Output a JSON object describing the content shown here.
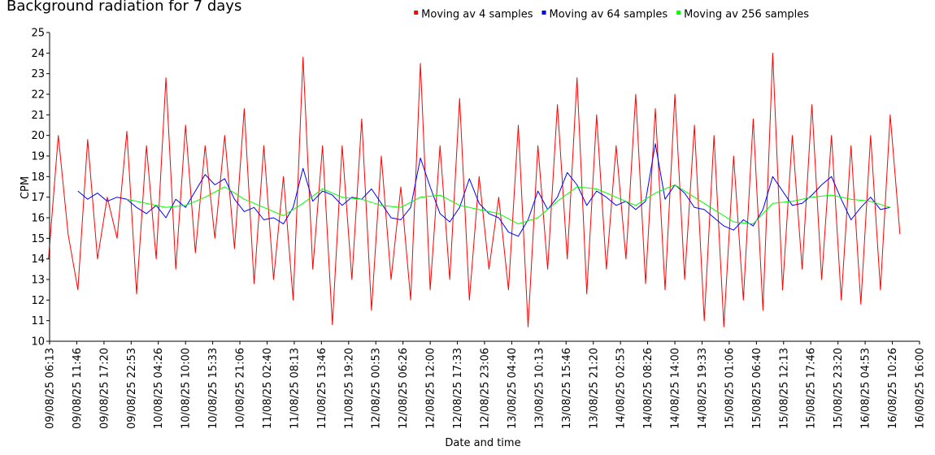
{
  "chart_data": {
    "type": "line",
    "title": "Background radiation for 7 days",
    "xlabel": "Date and time",
    "ylabel": "CPM",
    "ylim": [
      10,
      25
    ],
    "yticks": [
      10,
      11,
      12,
      13,
      14,
      15,
      16,
      17,
      18,
      19,
      20,
      21,
      22,
      23,
      24,
      25
    ],
    "xlim": [
      "09/08/25 06:13",
      "16/08/25 16:00"
    ],
    "xticks": [
      "09/08/25 06:13",
      "09/08/25 11:46",
      "09/08/25 17:20",
      "09/08/25 22:53",
      "10/08/25 04:26",
      "10/08/25 10:00",
      "10/08/25 15:33",
      "10/08/25 21:06",
      "11/08/25 02:40",
      "11/08/25 08:13",
      "11/08/25 13:46",
      "11/08/25 19:20",
      "12/08/25 00:53",
      "12/08/25 06:26",
      "12/08/25 12:00",
      "12/08/25 17:33",
      "12/08/25 23:06",
      "13/08/25 04:40",
      "13/08/25 10:13",
      "13/08/25 15:46",
      "13/08/25 21:20",
      "14/08/25 02:53",
      "14/08/25 08:26",
      "14/08/25 14:00",
      "14/08/25 19:33",
      "15/08/25 01:06",
      "15/08/25 06:40",
      "15/08/25 12:13",
      "15/08/25 17:46",
      "15/08/25 23:20",
      "16/08/25 04:53",
      "16/08/25 10:26",
      "16/08/25 16:00"
    ],
    "grid": false,
    "legend_position": "top-right",
    "series": [
      {
        "name": "Moving av 4 samples",
        "color": "#ff0000",
        "x": [
          "09/08/25 06:00",
          "09/08/25 08:00",
          "09/08/25 10:00",
          "09/08/25 12:00",
          "09/08/25 14:00",
          "09/08/25 16:00",
          "09/08/25 18:00",
          "09/08/25 20:00",
          "09/08/25 22:00",
          "10/08/25 00:00",
          "10/08/25 02:00",
          "10/08/25 04:00",
          "10/08/25 06:00",
          "10/08/25 08:00",
          "10/08/25 10:00",
          "10/08/25 12:00",
          "10/08/25 14:00",
          "10/08/25 16:00",
          "10/08/25 18:00",
          "10/08/25 20:00",
          "10/08/25 22:00",
          "11/08/25 00:00",
          "11/08/25 02:00",
          "11/08/25 04:00",
          "11/08/25 06:00",
          "11/08/25 08:00",
          "11/08/25 10:00",
          "11/08/25 12:00",
          "11/08/25 14:00",
          "11/08/25 16:00",
          "11/08/25 18:00",
          "11/08/25 20:00",
          "11/08/25 22:00",
          "12/08/25 00:00",
          "12/08/25 02:00",
          "12/08/25 04:00",
          "12/08/25 06:00",
          "12/08/25 08:00",
          "12/08/25 10:00",
          "12/08/25 12:00",
          "12/08/25 14:00",
          "12/08/25 16:00",
          "12/08/25 18:00",
          "12/08/25 20:00",
          "12/08/25 22:00",
          "13/08/25 00:00",
          "13/08/25 02:00",
          "13/08/25 04:00",
          "13/08/25 06:00",
          "13/08/25 08:00",
          "13/08/25 10:00",
          "13/08/25 12:00",
          "13/08/25 14:00",
          "13/08/25 16:00",
          "13/08/25 18:00",
          "13/08/25 20:00",
          "13/08/25 22:00",
          "14/08/25 00:00",
          "14/08/25 02:00",
          "14/08/25 04:00",
          "14/08/25 06:00",
          "14/08/25 08:00",
          "14/08/25 10:00",
          "14/08/25 12:00",
          "14/08/25 14:00",
          "14/08/25 16:00",
          "14/08/25 18:00",
          "14/08/25 20:00",
          "14/08/25 22:00",
          "15/08/25 00:00",
          "15/08/25 02:00",
          "15/08/25 04:00",
          "15/08/25 06:00",
          "15/08/25 08:00",
          "15/08/25 10:00",
          "15/08/25 12:00",
          "15/08/25 14:00",
          "15/08/25 16:00",
          "15/08/25 18:00",
          "15/08/25 20:00",
          "15/08/25 22:00",
          "16/08/25 00:00",
          "16/08/25 02:00",
          "16/08/25 04:00",
          "16/08/25 06:00",
          "16/08/25 08:00",
          "16/08/25 10:00",
          "16/08/25 12:00"
        ],
        "values": [
          14.0,
          20.0,
          15.2,
          12.5,
          19.8,
          14.0,
          17.0,
          15.0,
          20.2,
          12.3,
          19.5,
          14.0,
          22.8,
          13.5,
          20.5,
          14.3,
          19.5,
          15.0,
          20.0,
          14.5,
          21.3,
          12.8,
          19.5,
          13.0,
          18.0,
          12.0,
          23.8,
          13.5,
          19.5,
          10.8,
          19.5,
          13.0,
          20.8,
          11.5,
          19.0,
          13.0,
          17.5,
          12.0,
          23.5,
          12.5,
          19.5,
          13.0,
          21.8,
          12.0,
          18.0,
          13.5,
          17.0,
          12.5,
          20.5,
          10.7,
          19.5,
          13.5,
          21.5,
          14.0,
          22.8,
          12.3,
          21.0,
          13.5,
          19.5,
          14.0,
          22.0,
          12.8,
          21.3,
          12.5,
          22.0,
          13.0,
          20.5,
          11.0,
          20.0,
          10.7,
          19.0,
          12.0,
          20.8,
          11.5,
          24.0,
          12.5,
          20.0,
          13.5,
          21.5,
          13.0,
          20.0,
          12.0,
          19.5,
          11.8,
          20.0,
          12.5,
          21.0,
          15.2
        ]
      },
      {
        "name": "Moving av 64 samples",
        "color": "#0000ff",
        "x": [
          "09/08/25 12:00",
          "09/08/25 14:00",
          "09/08/25 16:00",
          "09/08/25 18:00",
          "09/08/25 20:00",
          "09/08/25 22:00",
          "10/08/25 00:00",
          "10/08/25 02:00",
          "10/08/25 04:00",
          "10/08/25 06:00",
          "10/08/25 08:00",
          "10/08/25 10:00",
          "10/08/25 12:00",
          "10/08/25 14:00",
          "10/08/25 16:00",
          "10/08/25 18:00",
          "10/08/25 20:00",
          "10/08/25 22:00",
          "11/08/25 00:00",
          "11/08/25 02:00",
          "11/08/25 04:00",
          "11/08/25 06:00",
          "11/08/25 08:00",
          "11/08/25 10:00",
          "11/08/25 12:00",
          "11/08/25 14:00",
          "11/08/25 16:00",
          "11/08/25 18:00",
          "11/08/25 20:00",
          "11/08/25 22:00",
          "12/08/25 00:00",
          "12/08/25 02:00",
          "12/08/25 04:00",
          "12/08/25 06:00",
          "12/08/25 08:00",
          "12/08/25 10:00",
          "12/08/25 12:00",
          "12/08/25 14:00",
          "12/08/25 16:00",
          "12/08/25 18:00",
          "12/08/25 20:00",
          "12/08/25 22:00",
          "13/08/25 00:00",
          "13/08/25 02:00",
          "13/08/25 04:00",
          "13/08/25 06:00",
          "13/08/25 08:00",
          "13/08/25 10:00",
          "13/08/25 12:00",
          "13/08/25 14:00",
          "13/08/25 16:00",
          "13/08/25 18:00",
          "13/08/25 20:00",
          "13/08/25 22:00",
          "14/08/25 00:00",
          "14/08/25 02:00",
          "14/08/25 04:00",
          "14/08/25 06:00",
          "14/08/25 08:00",
          "14/08/25 10:00",
          "14/08/25 12:00",
          "14/08/25 14:00",
          "14/08/25 16:00",
          "14/08/25 18:00",
          "14/08/25 20:00",
          "14/08/25 22:00",
          "15/08/25 00:00",
          "15/08/25 02:00",
          "15/08/25 04:00",
          "15/08/25 06:00",
          "15/08/25 08:00",
          "15/08/25 10:00",
          "15/08/25 12:00",
          "15/08/25 14:00",
          "15/08/25 16:00",
          "15/08/25 18:00",
          "15/08/25 20:00",
          "15/08/25 22:00",
          "16/08/25 00:00",
          "16/08/25 02:00",
          "16/08/25 04:00",
          "16/08/25 06:00",
          "16/08/25 08:00",
          "16/08/25 10:00"
        ],
        "values": [
          17.3,
          16.9,
          17.2,
          16.8,
          17.0,
          16.9,
          16.5,
          16.2,
          16.6,
          16.0,
          16.9,
          16.5,
          17.3,
          18.1,
          17.6,
          17.9,
          16.9,
          16.3,
          16.5,
          15.9,
          16.0,
          15.7,
          16.5,
          18.4,
          16.8,
          17.3,
          17.1,
          16.6,
          17.0,
          16.9,
          17.4,
          16.7,
          16.0,
          15.9,
          16.5,
          18.9,
          17.5,
          16.2,
          15.8,
          16.5,
          17.9,
          16.7,
          16.2,
          16.0,
          15.3,
          15.1,
          15.9,
          17.3,
          16.4,
          17.0,
          18.2,
          17.6,
          16.6,
          17.3,
          17.0,
          16.6,
          16.8,
          16.4,
          16.8,
          19.6,
          16.9,
          17.6,
          17.2,
          16.5,
          16.4,
          16.0,
          15.6,
          15.4,
          15.9,
          15.6,
          16.4,
          18.0,
          17.3,
          16.6,
          16.7,
          17.1,
          17.6,
          18.0,
          16.9,
          15.9,
          16.5,
          17.0,
          16.4,
          16.5
        ]
      },
      {
        "name": "Moving av 256 samples",
        "color": "#00ff00",
        "x": [
          "09/08/25 22:00",
          "10/08/25 02:00",
          "10/08/25 06:00",
          "10/08/25 10:00",
          "10/08/25 14:00",
          "10/08/25 18:00",
          "10/08/25 22:00",
          "11/08/25 02:00",
          "11/08/25 06:00",
          "11/08/25 10:00",
          "11/08/25 14:00",
          "11/08/25 18:00",
          "11/08/25 22:00",
          "12/08/25 02:00",
          "12/08/25 06:00",
          "12/08/25 10:00",
          "12/08/25 14:00",
          "12/08/25 18:00",
          "12/08/25 22:00",
          "13/08/25 02:00",
          "13/08/25 06:00",
          "13/08/25 10:00",
          "13/08/25 14:00",
          "13/08/25 18:00",
          "13/08/25 22:00",
          "14/08/25 02:00",
          "14/08/25 06:00",
          "14/08/25 10:00",
          "14/08/25 14:00",
          "14/08/25 18:00",
          "14/08/25 22:00",
          "15/08/25 02:00",
          "15/08/25 06:00",
          "15/08/25 10:00",
          "15/08/25 14:00",
          "15/08/25 18:00",
          "15/08/25 22:00",
          "16/08/25 02:00",
          "16/08/25 06:00",
          "16/08/25 10:00"
        ],
        "values": [
          16.9,
          16.7,
          16.5,
          16.6,
          17.0,
          17.5,
          16.9,
          16.5,
          16.1,
          16.7,
          17.4,
          17.0,
          16.9,
          16.6,
          16.5,
          17.0,
          17.1,
          16.6,
          16.4,
          16.2,
          15.7,
          16.0,
          16.8,
          17.5,
          17.4,
          17.0,
          16.6,
          17.2,
          17.6,
          17.0,
          16.4,
          15.8,
          15.7,
          16.7,
          16.8,
          17.0,
          17.1,
          16.9,
          16.8,
          16.5
        ]
      }
    ]
  }
}
